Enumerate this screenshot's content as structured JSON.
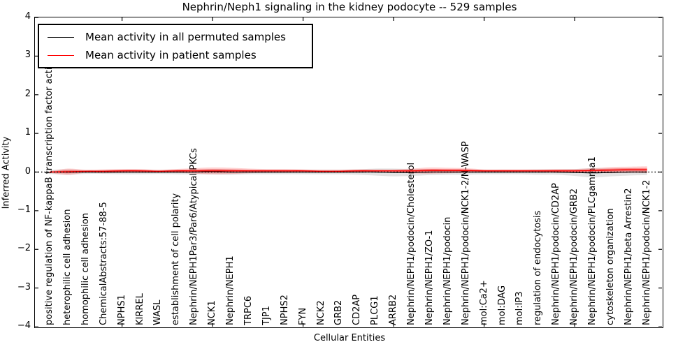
{
  "chart_data": {
    "type": "line",
    "title": "Nephrin/Neph1 signaling in the kidney podocyte -- 529 samples",
    "xlabel": "Cellular Entities",
    "ylabel": "Inferred Activity",
    "ylim": [
      -4,
      4
    ],
    "ytick_labels": [
      "4",
      "3",
      "2",
      "1",
      "0",
      "−1",
      "−2",
      "−3",
      "−4"
    ],
    "grid": false,
    "zero_line_style": "dotted",
    "legend_position": "upper left",
    "legend": {
      "items": [
        {
          "label": "Mean activity in all permuted samples",
          "color": "#000000"
        },
        {
          "label": "Mean activity in patient samples",
          "color": "#ff0000"
        }
      ]
    },
    "band_colors": {
      "permuted": "rgba(128,128,128,0.22)",
      "patient_outer": "rgba(255,0,0,0.18)",
      "patient_inner": "rgba(255,0,0,0.32)"
    },
    "categories": [
      "positive regulation of NF-kappaB transcription factor activity",
      "heterophilic cell adhesion",
      "homophilic cell adhesion",
      "ChemicalAbstracts:57-88-5",
      "NPHS1",
      "KIRREL",
      "WASL",
      "establishment of cell polarity",
      "Nephrin/NEPH1Par3/Par6/Atypical PKCs",
      "NCK1",
      "Nephrin/NEPH1",
      "TRPC6",
      "TJP1",
      "NPHS2",
      "FYN",
      "NCK2",
      "GRB2",
      "CD2AP",
      "PLCG1",
      "ARRB2",
      "Nephrin/NEPH1/podocin/Cholesterol",
      "Nephrin/NEPH1/ZO-1",
      "Nephrin/NEPH1/podocin",
      "Nephrin/NEPH1/podocin/NCK1-2/N-WASP",
      "mol:Ca2+",
      "mol:DAG",
      "mol:IP3",
      "regulation of endocytosis",
      "Nephrin/NEPH1/podocin/CD2AP",
      "Nephrin/NEPH1/podocin/GRB2",
      "Nephrin/NEPH1/podocin/PLCgamma1",
      "cytoskeleton organization",
      "Nephrin/NEPH1/beta Arrestin2",
      "Nephrin/NEPH1/podocin/NCK1-2"
    ],
    "series": [
      {
        "name": "Mean activity in all permuted samples",
        "color": "#000000",
        "values": [
          0,
          0,
          0,
          0,
          0,
          0,
          0,
          0,
          0,
          0.01,
          0,
          0,
          0,
          0,
          0,
          0,
          0,
          0,
          0,
          -0.01,
          -0.01,
          0,
          0,
          0,
          0,
          0,
          0,
          0,
          0,
          -0.01,
          -0.02,
          -0.01,
          0,
          0
        ]
      },
      {
        "name": "Permuted samples std band half-width",
        "color": "rgba(128,128,128,0.22)",
        "values": [
          0.05,
          0.07,
          0.05,
          0.05,
          0.06,
          0.06,
          0.05,
          0.06,
          0.06,
          0.07,
          0.07,
          0.06,
          0.06,
          0.06,
          0.06,
          0.06,
          0.06,
          0.07,
          0.09,
          0.1,
          0.09,
          0.08,
          0.07,
          0.07,
          0.06,
          0.06,
          0.06,
          0.07,
          0.07,
          0.09,
          0.12,
          0.1,
          0.09,
          0.08
        ]
      },
      {
        "name": "Mean activity in patient samples",
        "color": "#ff0000",
        "values": [
          0,
          0.01,
          0.02,
          0.02,
          0.03,
          0.03,
          0.02,
          0.03,
          0.03,
          0.03,
          0.03,
          0.03,
          0.03,
          0.03,
          0.03,
          0.02,
          0.02,
          0.03,
          0.03,
          0.03,
          0.03,
          0.04,
          0.04,
          0.04,
          0.03,
          0.03,
          0.03,
          0.03,
          0.03,
          0.03,
          0.04,
          0.05,
          0.06,
          0.06
        ]
      },
      {
        "name": "Patient samples std band half-width",
        "color": "rgba(255,0,0,0.25)",
        "values": [
          0.02,
          0.08,
          0.04,
          0.05,
          0.05,
          0.05,
          0.04,
          0.05,
          0.07,
          0.09,
          0.08,
          0.06,
          0.05,
          0.05,
          0.04,
          0.04,
          0.04,
          0.04,
          0.04,
          0.04,
          0.06,
          0.08,
          0.07,
          0.06,
          0.04,
          0.04,
          0.04,
          0.04,
          0.05,
          0.05,
          0.06,
          0.08,
          0.08,
          0.09
        ]
      }
    ],
    "x_major_tick_indices": [
      4,
      9,
      14,
      19,
      24,
      29
    ]
  }
}
